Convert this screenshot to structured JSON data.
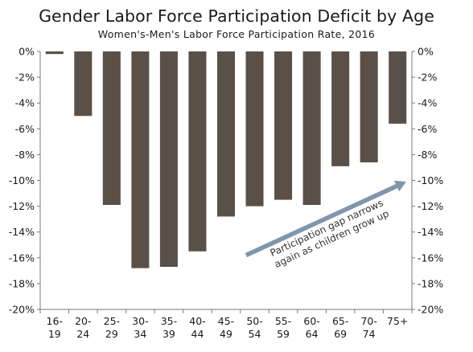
{
  "chart_data": {
    "type": "bar",
    "title": "Gender Labor Force Participation Deficit by Age",
    "subtitle": "Women's-Men's Labor Force Participation Rate, 2016",
    "categories": [
      [
        "16-",
        "19"
      ],
      [
        "20-",
        "24"
      ],
      [
        "25-",
        "29"
      ],
      [
        "30-",
        "34"
      ],
      [
        "35-",
        "39"
      ],
      [
        "40-",
        "44"
      ],
      [
        "45-",
        "49"
      ],
      [
        "50-",
        "54"
      ],
      [
        "55-",
        "59"
      ],
      [
        "60-",
        "64"
      ],
      [
        "65-",
        "69"
      ],
      [
        "70-",
        "74"
      ],
      [
        "75+"
      ]
    ],
    "values": [
      -0.2,
      -5.0,
      -11.9,
      -16.8,
      -16.7,
      -15.5,
      -12.8,
      -12.0,
      -11.5,
      -11.9,
      -8.9,
      -8.6,
      -5.6
    ],
    "ylim": [
      -20,
      0
    ],
    "yticks": [
      0,
      -2,
      -4,
      -6,
      -8,
      -10,
      -12,
      -14,
      -16,
      -18,
      -20
    ],
    "ytick_labels": [
      "0%",
      "-2%",
      "-4%",
      "-6%",
      "-8%",
      "-10%",
      "-12%",
      "-14%",
      "-16%",
      "-18%",
      "-20%"
    ],
    "xlabel": "",
    "ylabel": "",
    "grid": false,
    "bar_color": "#5a5047",
    "axis_color": "#7a7a7a",
    "annotation": {
      "lines": [
        "Participation gap narrows",
        "again as children grow up"
      ],
      "arrow_color": "#7f96ad",
      "from": {
        "category_index": 7.2,
        "value": -15.8
      },
      "to": {
        "category_index": 12.8,
        "value": -10.1
      }
    }
  }
}
